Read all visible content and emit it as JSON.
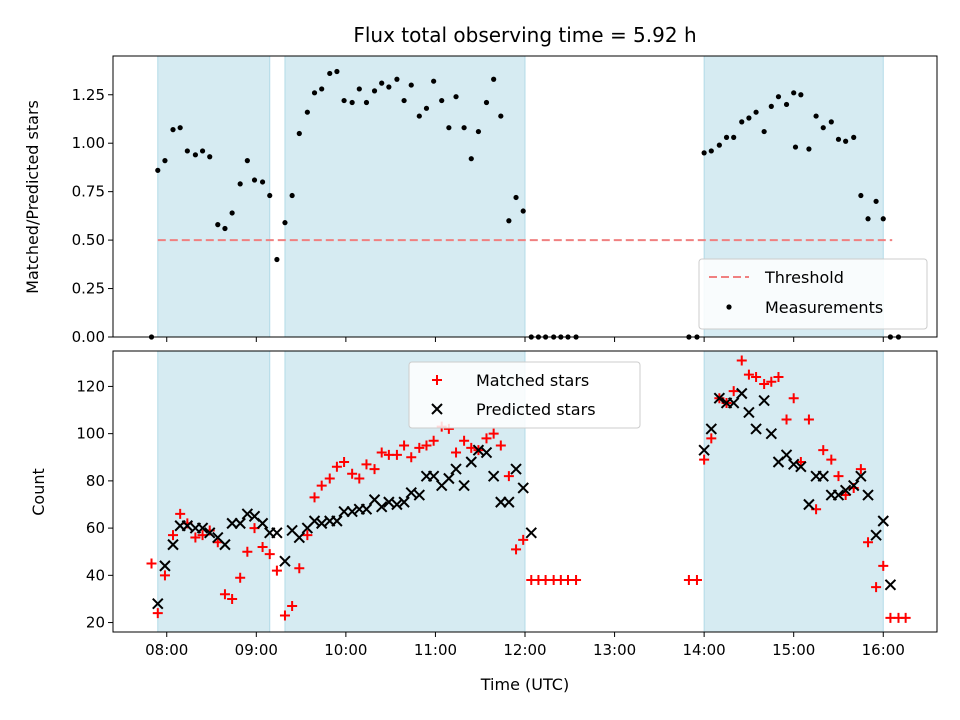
{
  "chart_data": [
    {
      "type": "scatter",
      "title": "Flux total observing time = 5.92 h",
      "xlabel": "",
      "ylabel": "Matched/Predicted stars",
      "ylim": [
        0.0,
        1.45
      ],
      "yticks": [
        0.0,
        0.25,
        0.5,
        0.75,
        1.0,
        1.25
      ],
      "ytick_labels": [
        "0.00",
        "0.25",
        "0.50",
        "0.75",
        "1.00",
        "1.25"
      ],
      "xlim_hours": [
        7.4,
        16.6
      ],
      "legend": {
        "position": "lower-right",
        "entries": [
          {
            "label": "Threshold",
            "key": "threshold"
          },
          {
            "label": "Measurements",
            "key": "measurements"
          }
        ]
      },
      "threshold": {
        "y": 0.5,
        "x_range_hours": [
          7.9,
          16.1
        ],
        "color": "#f08080"
      },
      "shaded_intervals_hours": [
        [
          7.9,
          9.15
        ],
        [
          9.32,
          12.0
        ],
        [
          14.0,
          16.0
        ]
      ],
      "measurements": {
        "color": "#000000",
        "points": [
          [
            7.83,
            0.0
          ],
          [
            7.9,
            0.86
          ],
          [
            7.98,
            0.91
          ],
          [
            8.07,
            1.07
          ],
          [
            8.15,
            1.08
          ],
          [
            8.23,
            0.96
          ],
          [
            8.32,
            0.94
          ],
          [
            8.4,
            0.96
          ],
          [
            8.48,
            0.93
          ],
          [
            8.57,
            0.58
          ],
          [
            8.65,
            0.56
          ],
          [
            8.73,
            0.64
          ],
          [
            8.82,
            0.79
          ],
          [
            8.9,
            0.91
          ],
          [
            8.98,
            0.81
          ],
          [
            9.07,
            0.8
          ],
          [
            9.15,
            0.73
          ],
          [
            9.23,
            0.4
          ],
          [
            9.32,
            0.59
          ],
          [
            9.4,
            0.73
          ],
          [
            9.48,
            1.05
          ],
          [
            9.57,
            1.16
          ],
          [
            9.65,
            1.26
          ],
          [
            9.73,
            1.28
          ],
          [
            9.82,
            1.36
          ],
          [
            9.9,
            1.37
          ],
          [
            9.98,
            1.22
          ],
          [
            10.07,
            1.21
          ],
          [
            10.15,
            1.28
          ],
          [
            10.23,
            1.21
          ],
          [
            10.32,
            1.27
          ],
          [
            10.4,
            1.31
          ],
          [
            10.48,
            1.29
          ],
          [
            10.57,
            1.33
          ],
          [
            10.65,
            1.22
          ],
          [
            10.73,
            1.3
          ],
          [
            10.82,
            1.14
          ],
          [
            10.9,
            1.18
          ],
          [
            10.98,
            1.32
          ],
          [
            11.07,
            1.22
          ],
          [
            11.15,
            1.08
          ],
          [
            11.23,
            1.24
          ],
          [
            11.32,
            1.08
          ],
          [
            11.4,
            0.92
          ],
          [
            11.48,
            1.06
          ],
          [
            11.57,
            1.21
          ],
          [
            11.65,
            1.33
          ],
          [
            11.73,
            1.14
          ],
          [
            11.82,
            0.6
          ],
          [
            11.9,
            0.72
          ],
          [
            11.98,
            0.65
          ],
          [
            12.07,
            0.0
          ],
          [
            12.15,
            0.0
          ],
          [
            12.23,
            0.0
          ],
          [
            12.32,
            0.0
          ],
          [
            12.4,
            0.0
          ],
          [
            12.48,
            0.0
          ],
          [
            12.57,
            0.0
          ],
          [
            13.83,
            0.0
          ],
          [
            13.92,
            0.0
          ],
          [
            14.0,
            0.95
          ],
          [
            14.08,
            0.96
          ],
          [
            14.17,
            0.99
          ],
          [
            14.25,
            1.03
          ],
          [
            14.33,
            1.03
          ],
          [
            14.42,
            1.11
          ],
          [
            14.5,
            1.13
          ],
          [
            14.58,
            1.16
          ],
          [
            14.67,
            1.06
          ],
          [
            14.75,
            1.19
          ],
          [
            14.83,
            1.24
          ],
          [
            14.92,
            1.2
          ],
          [
            15.0,
            1.26
          ],
          [
            15.02,
            0.98
          ],
          [
            15.08,
            1.25
          ],
          [
            15.17,
            0.97
          ],
          [
            15.25,
            1.14
          ],
          [
            15.33,
            1.08
          ],
          [
            15.42,
            1.11
          ],
          [
            15.5,
            1.02
          ],
          [
            15.58,
            1.01
          ],
          [
            15.67,
            1.03
          ],
          [
            15.75,
            0.73
          ],
          [
            15.83,
            0.61
          ],
          [
            15.92,
            0.7
          ],
          [
            16.0,
            0.61
          ],
          [
            16.08,
            0.0
          ],
          [
            16.17,
            0.0
          ]
        ]
      }
    },
    {
      "type": "scatter",
      "title": "",
      "xlabel": "Time (UTC)",
      "ylabel": "Count",
      "ylim": [
        16,
        135
      ],
      "yticks": [
        20,
        40,
        60,
        80,
        100,
        120
      ],
      "ytick_labels": [
        "20",
        "40",
        "60",
        "80",
        "100",
        "120"
      ],
      "xlim_hours": [
        7.4,
        16.6
      ],
      "xticks_hours": [
        8,
        9,
        10,
        11,
        12,
        13,
        14,
        15,
        16
      ],
      "xtick_labels": [
        "08:00",
        "09:00",
        "10:00",
        "11:00",
        "12:00",
        "13:00",
        "14:00",
        "15:00",
        "16:00"
      ],
      "legend": {
        "position": "top-center",
        "entries": [
          {
            "label": "Matched stars",
            "key": "matched"
          },
          {
            "label": "Predicted stars",
            "key": "predicted"
          }
        ]
      },
      "shaded_intervals_hours": [
        [
          7.9,
          9.15
        ],
        [
          9.32,
          12.0
        ],
        [
          14.0,
          16.0
        ]
      ],
      "matched": {
        "color": "#ff0000",
        "marker": "plus",
        "points": [
          [
            7.83,
            45
          ],
          [
            7.9,
            24
          ],
          [
            7.98,
            40
          ],
          [
            8.07,
            57
          ],
          [
            8.15,
            66
          ],
          [
            8.23,
            62
          ],
          [
            8.32,
            56
          ],
          [
            8.4,
            57
          ],
          [
            8.48,
            59
          ],
          [
            8.57,
            54
          ],
          [
            8.65,
            32
          ],
          [
            8.73,
            30
          ],
          [
            8.82,
            39
          ],
          [
            8.9,
            50
          ],
          [
            8.98,
            60
          ],
          [
            9.07,
            52
          ],
          [
            9.15,
            49
          ],
          [
            9.23,
            42
          ],
          [
            9.32,
            23
          ],
          [
            9.4,
            27
          ],
          [
            9.48,
            43
          ],
          [
            9.57,
            57
          ],
          [
            9.65,
            73
          ],
          [
            9.73,
            78
          ],
          [
            9.82,
            81
          ],
          [
            9.9,
            86
          ],
          [
            9.98,
            88
          ],
          [
            10.07,
            83
          ],
          [
            10.15,
            81
          ],
          [
            10.23,
            87
          ],
          [
            10.32,
            85
          ],
          [
            10.4,
            92
          ],
          [
            10.48,
            91
          ],
          [
            10.57,
            91
          ],
          [
            10.65,
            95
          ],
          [
            10.73,
            90
          ],
          [
            10.82,
            94
          ],
          [
            10.9,
            95
          ],
          [
            10.98,
            97
          ],
          [
            11.07,
            103
          ],
          [
            11.15,
            102
          ],
          [
            11.23,
            92
          ],
          [
            11.32,
            97
          ],
          [
            11.4,
            94
          ],
          [
            11.48,
            93
          ],
          [
            11.57,
            98
          ],
          [
            11.65,
            100
          ],
          [
            11.73,
            95
          ],
          [
            11.82,
            82
          ],
          [
            11.9,
            51
          ],
          [
            11.98,
            55
          ],
          [
            12.07,
            38
          ],
          [
            12.15,
            38
          ],
          [
            12.23,
            38
          ],
          [
            12.32,
            38
          ],
          [
            12.4,
            38
          ],
          [
            12.48,
            38
          ],
          [
            12.57,
            38
          ],
          [
            13.83,
            38
          ],
          [
            13.92,
            38
          ],
          [
            14.0,
            89
          ],
          [
            14.08,
            98
          ],
          [
            14.17,
            115
          ],
          [
            14.25,
            113
          ],
          [
            14.33,
            118
          ],
          [
            14.42,
            131
          ],
          [
            14.5,
            125
          ],
          [
            14.58,
            124
          ],
          [
            14.67,
            121
          ],
          [
            14.75,
            122
          ],
          [
            14.83,
            124
          ],
          [
            14.92,
            106
          ],
          [
            15.0,
            115
          ],
          [
            15.08,
            88
          ],
          [
            15.17,
            106
          ],
          [
            15.25,
            68
          ],
          [
            15.33,
            93
          ],
          [
            15.42,
            89
          ],
          [
            15.5,
            82
          ],
          [
            15.58,
            74
          ],
          [
            15.67,
            77
          ],
          [
            15.75,
            85
          ],
          [
            15.83,
            54
          ],
          [
            15.92,
            35
          ],
          [
            16.0,
            44
          ],
          [
            16.08,
            22
          ],
          [
            16.17,
            22
          ],
          [
            16.25,
            22
          ]
        ]
      },
      "predicted": {
        "color": "#000000",
        "marker": "x",
        "points": [
          [
            7.9,
            28
          ],
          [
            7.98,
            44
          ],
          [
            8.07,
            53
          ],
          [
            8.15,
            61
          ],
          [
            8.23,
            61
          ],
          [
            8.32,
            60
          ],
          [
            8.4,
            60
          ],
          [
            8.48,
            58
          ],
          [
            8.57,
            56
          ],
          [
            8.65,
            53
          ],
          [
            8.73,
            62
          ],
          [
            8.82,
            62
          ],
          [
            8.9,
            66
          ],
          [
            8.98,
            65
          ],
          [
            9.07,
            62
          ],
          [
            9.15,
            58
          ],
          [
            9.23,
            58
          ],
          [
            9.32,
            46
          ],
          [
            9.4,
            59
          ],
          [
            9.48,
            56
          ],
          [
            9.57,
            60
          ],
          [
            9.65,
            63
          ],
          [
            9.73,
            62
          ],
          [
            9.82,
            63
          ],
          [
            9.9,
            63
          ],
          [
            9.98,
            67
          ],
          [
            10.07,
            67
          ],
          [
            10.15,
            68
          ],
          [
            10.23,
            68
          ],
          [
            10.32,
            72
          ],
          [
            10.4,
            69
          ],
          [
            10.48,
            71
          ],
          [
            10.57,
            70
          ],
          [
            10.65,
            71
          ],
          [
            10.73,
            75
          ],
          [
            10.82,
            74
          ],
          [
            10.9,
            82
          ],
          [
            10.98,
            82
          ],
          [
            11.07,
            78
          ],
          [
            11.15,
            81
          ],
          [
            11.23,
            85
          ],
          [
            11.32,
            78
          ],
          [
            11.4,
            88
          ],
          [
            11.48,
            93
          ],
          [
            11.57,
            92
          ],
          [
            11.65,
            82
          ],
          [
            11.73,
            71
          ],
          [
            11.82,
            71
          ],
          [
            11.9,
            85
          ],
          [
            11.98,
            77
          ],
          [
            12.07,
            58
          ],
          [
            14.0,
            93
          ],
          [
            14.08,
            102
          ],
          [
            14.17,
            115
          ],
          [
            14.25,
            113
          ],
          [
            14.33,
            113
          ],
          [
            14.42,
            117
          ],
          [
            14.5,
            109
          ],
          [
            14.58,
            102
          ],
          [
            14.67,
            114
          ],
          [
            14.75,
            100
          ],
          [
            14.83,
            88
          ],
          [
            14.92,
            91
          ],
          [
            15.0,
            87
          ],
          [
            15.08,
            86
          ],
          [
            15.17,
            70
          ],
          [
            15.25,
            82
          ],
          [
            15.33,
            82
          ],
          [
            15.42,
            74
          ],
          [
            15.5,
            74
          ],
          [
            15.58,
            76
          ],
          [
            15.67,
            78
          ],
          [
            15.75,
            82
          ],
          [
            15.83,
            74
          ],
          [
            15.92,
            57
          ],
          [
            16.0,
            63
          ],
          [
            16.08,
            36
          ]
        ]
      }
    }
  ]
}
